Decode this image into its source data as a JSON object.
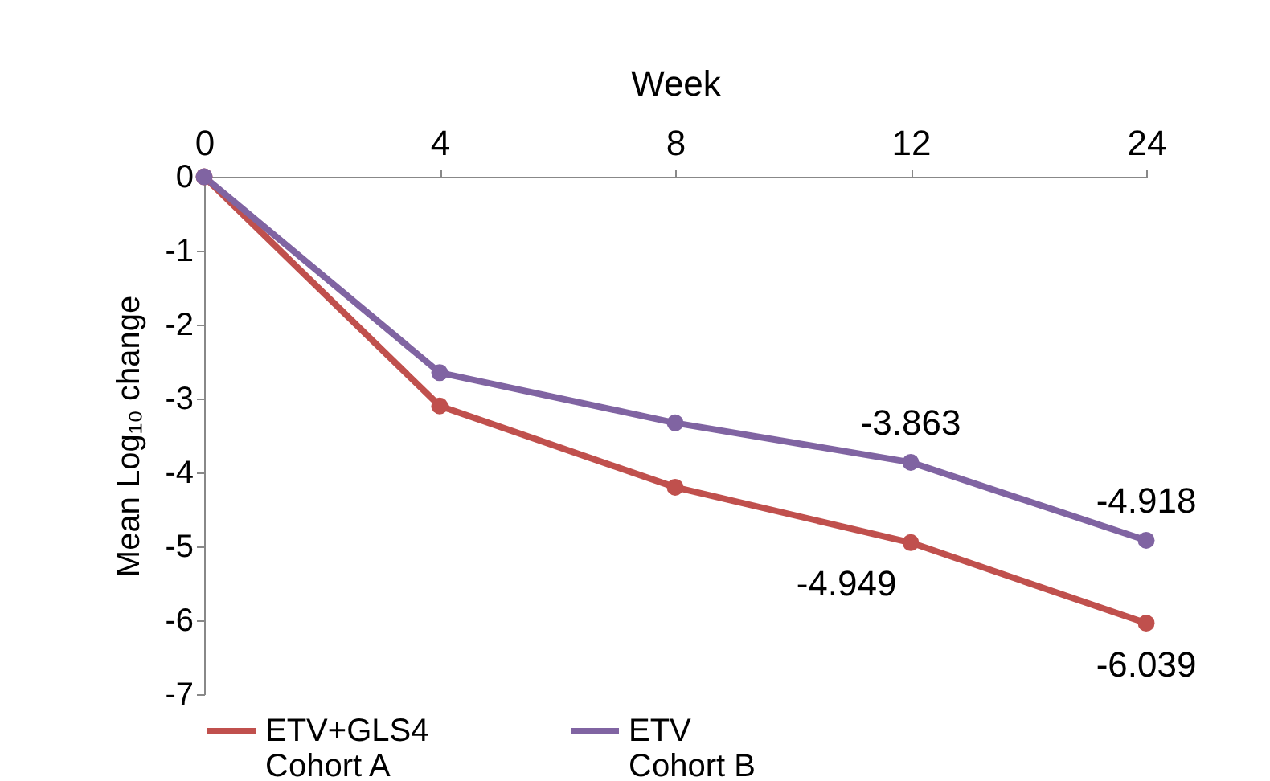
{
  "chart_data": {
    "type": "line",
    "xlabel": "Week",
    "ylabel": "Mean Log₁₀ change",
    "categories": [
      "0",
      "4",
      "8",
      "12",
      "24"
    ],
    "series": [
      {
        "name": "ETV+GLS4\nCohort A",
        "color": "#c0504d",
        "values": [
          0,
          -3.1,
          -4.2,
          -4.949,
          -6.039
        ],
        "value_labels": [
          null,
          null,
          null,
          "-4.949",
          "-6.039"
        ]
      },
      {
        "name": "ETV\nCohort B",
        "color": "#8064a2",
        "values": [
          0,
          -2.65,
          -3.33,
          -3.863,
          -4.918
        ],
        "value_labels": [
          null,
          null,
          null,
          "-3.863",
          "-4.918"
        ]
      }
    ],
    "ylim": [
      -7,
      0
    ],
    "yticks": [
      0,
      -1,
      -2,
      -3,
      -4,
      -5,
      -6,
      -7
    ],
    "grid": false,
    "legend": "bottom",
    "marker": "circle"
  }
}
